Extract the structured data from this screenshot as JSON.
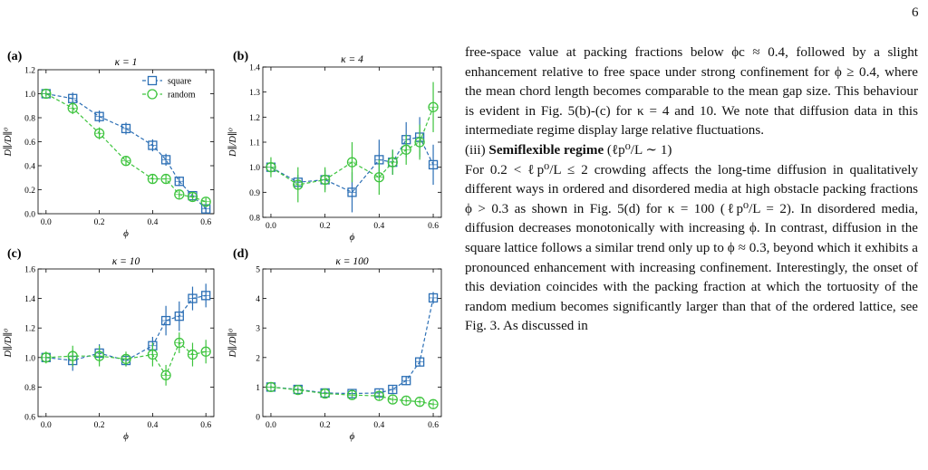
{
  "page_number": "6",
  "figure": {
    "legend": {
      "square": "square",
      "random": "random"
    },
    "colors": {
      "square": "#2c6fb5",
      "random": "#3ec43e"
    },
    "panels": [
      {
        "id": "a",
        "label": "(a)",
        "title": "κ = 1",
        "ylabel": "D∥/D∥⁰",
        "xlabel": "ϕ",
        "ylim": [
          0,
          1.2
        ],
        "yticks": [
          "0.0",
          "0.2",
          "0.4",
          "0.6",
          "0.8",
          "1.0",
          "1.2"
        ],
        "ytick_vals": [
          0,
          0.2,
          0.4,
          0.6,
          0.8,
          1.0,
          1.2
        ],
        "xticks": [
          "0.0",
          "0.2",
          "0.4",
          "0.6"
        ],
        "legend": true,
        "square": {
          "x": [
            0,
            0.1,
            0.2,
            0.3,
            0.4,
            0.45,
            0.5,
            0.55,
            0.6
          ],
          "y": [
            1.0,
            0.96,
            0.81,
            0.71,
            0.57,
            0.45,
            0.27,
            0.15,
            0.04
          ],
          "err": [
            0.02,
            0.05,
            0.05,
            0.05,
            0.05,
            0.05,
            0.04,
            0.03,
            0.03
          ]
        },
        "random": {
          "x": [
            0,
            0.1,
            0.2,
            0.3,
            0.4,
            0.45,
            0.5,
            0.55,
            0.6
          ],
          "y": [
            1.0,
            0.88,
            0.67,
            0.44,
            0.29,
            0.29,
            0.16,
            0.14,
            0.1
          ],
          "err": [
            0.02,
            0.05,
            0.05,
            0.04,
            0.04,
            0.04,
            0.03,
            0.03,
            0.03
          ]
        }
      },
      {
        "id": "b",
        "label": "(b)",
        "title": "κ = 4",
        "ylabel": "D∥/D∥⁰",
        "xlabel": "ϕ",
        "ylim": [
          0.8,
          1.4
        ],
        "yticks": [
          "0.8",
          "0.9",
          "1.0",
          "1.1",
          "1.2",
          "1.3",
          "1.4"
        ],
        "ytick_vals": [
          0.8,
          0.9,
          1.0,
          1.1,
          1.2,
          1.3,
          1.4
        ],
        "xticks": [
          "0.0",
          "0.2",
          "0.4",
          "0.6"
        ],
        "legend": false,
        "square": {
          "x": [
            0,
            0.1,
            0.2,
            0.3,
            0.4,
            0.45,
            0.5,
            0.55,
            0.6
          ],
          "y": [
            1.0,
            0.94,
            0.95,
            0.9,
            1.03,
            1.02,
            1.11,
            1.12,
            1.01
          ],
          "err": [
            0.02,
            0.03,
            0.04,
            0.08,
            0.08,
            0.05,
            0.07,
            0.08,
            0.08
          ]
        },
        "random": {
          "x": [
            0,
            0.1,
            0.2,
            0.3,
            0.4,
            0.45,
            0.5,
            0.55,
            0.6
          ],
          "y": [
            1.0,
            0.93,
            0.95,
            1.02,
            0.96,
            1.02,
            1.07,
            1.1,
            1.24
          ],
          "err": [
            0.04,
            0.07,
            0.05,
            0.08,
            0.07,
            0.05,
            0.06,
            0.07,
            0.1
          ]
        }
      },
      {
        "id": "c",
        "label": "(c)",
        "title": "κ = 10",
        "ylabel": "D∥/D∥⁰",
        "xlabel": "ϕ",
        "ylim": [
          0.6,
          1.6
        ],
        "yticks": [
          "0.6",
          "0.8",
          "1.0",
          "1.2",
          "1.4",
          "1.6"
        ],
        "ytick_vals": [
          0.6,
          0.8,
          1.0,
          1.2,
          1.4,
          1.6
        ],
        "xticks": [
          "0.0",
          "0.2",
          "0.4",
          "0.6"
        ],
        "legend": false,
        "square": {
          "x": [
            0,
            0.1,
            0.2,
            0.3,
            0.4,
            0.45,
            0.5,
            0.55,
            0.6
          ],
          "y": [
            1.0,
            0.98,
            1.03,
            0.98,
            1.08,
            1.25,
            1.28,
            1.4,
            1.42
          ],
          "err": [
            0.03,
            0.07,
            0.06,
            0.04,
            0.06,
            0.1,
            0.1,
            0.08,
            0.08
          ]
        },
        "random": {
          "x": [
            0,
            0.1,
            0.2,
            0.3,
            0.4,
            0.45,
            0.5,
            0.55,
            0.6
          ],
          "y": [
            1.0,
            1.01,
            1.01,
            0.99,
            1.02,
            0.88,
            1.1,
            1.02,
            1.04
          ],
          "err": [
            0.04,
            0.07,
            0.07,
            0.05,
            0.08,
            0.07,
            0.07,
            0.08,
            0.08
          ]
        }
      },
      {
        "id": "d",
        "label": "(d)",
        "title": "κ = 100",
        "ylabel": "D∥/D∥⁰",
        "xlabel": "ϕ",
        "ylim": [
          0,
          5
        ],
        "yticks": [
          "0",
          "1",
          "2",
          "3",
          "4",
          "5"
        ],
        "ytick_vals": [
          0,
          1,
          2,
          3,
          4,
          5
        ],
        "xticks": [
          "0.0",
          "0.2",
          "0.4",
          "0.6"
        ],
        "legend": false,
        "square": {
          "x": [
            0,
            0.1,
            0.2,
            0.3,
            0.4,
            0.45,
            0.5,
            0.55,
            0.6
          ],
          "y": [
            1.0,
            0.92,
            0.8,
            0.78,
            0.8,
            0.92,
            1.22,
            1.85,
            4.02
          ],
          "err": [
            0.05,
            0.05,
            0.05,
            0.05,
            0.06,
            0.1,
            0.15,
            0.15,
            0.2
          ]
        },
        "random": {
          "x": [
            0,
            0.1,
            0.2,
            0.3,
            0.4,
            0.45,
            0.5,
            0.55,
            0.6
          ],
          "y": [
            1.0,
            0.9,
            0.78,
            0.73,
            0.7,
            0.58,
            0.54,
            0.5,
            0.42
          ],
          "err": [
            0.05,
            0.05,
            0.05,
            0.05,
            0.05,
            0.05,
            0.05,
            0.05,
            0.05
          ]
        }
      }
    ]
  },
  "body": {
    "para1": "free-space value at packing fractions below ϕc ≈ 0.4, followed by a slight enhancement relative to free space under strong confinement for ϕ ≥ 0.4, where the mean chord length becomes comparable to the mean gap size. This behaviour is evident in Fig. 5(b)-(c) for κ = 4 and 10. We note that diffusion data in this intermediate regime display large relative fluctuations.",
    "regime_prefix": "(iii) ",
    "regime_title": "Semiflexible regime",
    "regime_condition": " (ℓp⁰/L ∼ 1)",
    "para2": "For 0.2 < ℓp⁰/L ≤ 2 crowding affects the long-time diffusion in qualitatively different ways in ordered and disordered media at high obstacle packing fractions ϕ > 0.3 as shown in Fig. 5(d) for κ = 100 (ℓp⁰/L = 2). In disordered media, diffusion decreases monotonically with increasing ϕ. In contrast, diffusion in the square lattice follows a similar trend only up to ϕ ≈ 0.3, beyond which it exhibits a pronounced enhancement with increasing confinement. Interestingly, the onset of this deviation coincides with the packing fraction at which the tortuosity of the random medium becomes significantly larger than that of the ordered lattice, see Fig. 3. As discussed in"
  }
}
